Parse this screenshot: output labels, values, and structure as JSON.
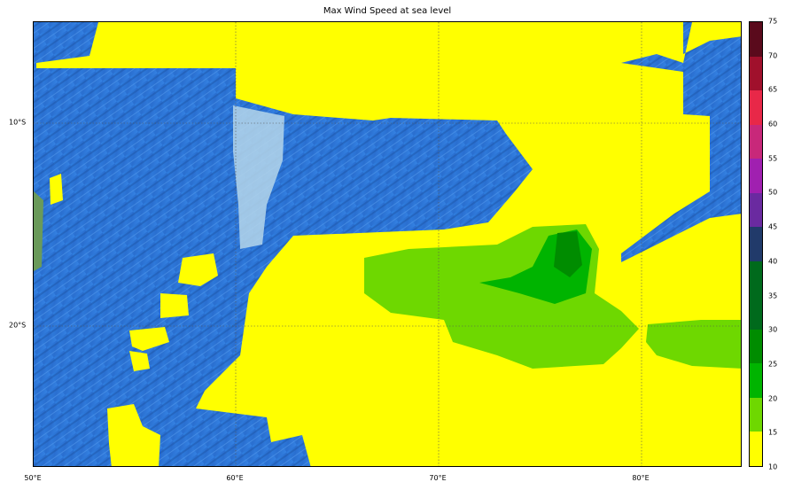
{
  "title": "Max Wind Speed at sea level",
  "map": {
    "lon_range": [
      50,
      85
    ],
    "lat_range": [
      -27,
      -5
    ],
    "x_ticks": [
      "50°E",
      "60°E",
      "70°E",
      "80°E"
    ],
    "y_ticks": [
      "10°S",
      "20°S"
    ],
    "gridlines": true,
    "basemap": "shaded relief ocean bathymetry"
  },
  "colorbar": {
    "levels": [
      10,
      15,
      20,
      25,
      30,
      35,
      40,
      45,
      50,
      55,
      60,
      65,
      70,
      75
    ],
    "labels": [
      "10",
      "15",
      "20",
      "25",
      "30",
      "35",
      "40",
      "45",
      "50",
      "55",
      "60",
      "65",
      "70",
      "75"
    ],
    "colors": [
      "#ffff00",
      "#6ed800",
      "#00b400",
      "#008c00",
      "#006a1c",
      "#006a1c",
      "#213a6a",
      "#6a2aa0",
      "#a020b0",
      "#c8287a",
      "#e82848",
      "#a0102c",
      "#5a0a1c"
    ]
  }
}
